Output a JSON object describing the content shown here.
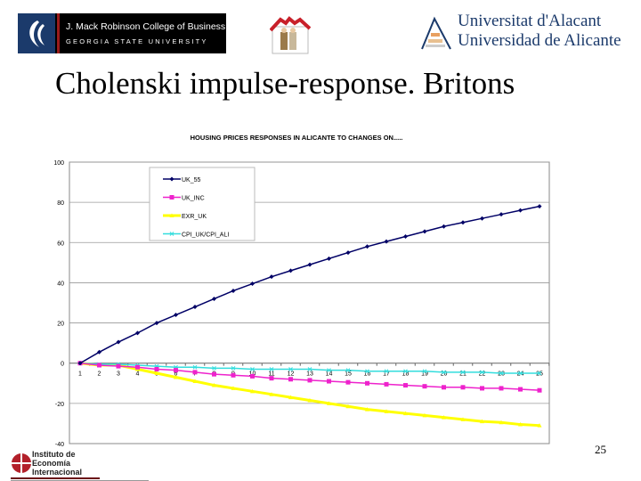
{
  "header": {
    "gsu_logo": {
      "line1": "J. Mack Robinson College of Business",
      "line2": "GEORGIA STATE UNIVERSITY"
    },
    "ua_logo": {
      "line1": "Universitat d'Alacant",
      "line2": "Universidad de Alicante"
    }
  },
  "slide_title": "Cholenski impulse-response. Britons",
  "footer": {
    "iei_logo": {
      "line1": "Instituto de",
      "line2": "Economía",
      "line3": "Internacional"
    },
    "page_number": "25"
  },
  "chart_data": {
    "type": "line",
    "title": "HOUSING PRICES RESPONSES IN ALICANTE TO CHANGES ON.....",
    "xlabel": "",
    "ylabel": "",
    "x": [
      1,
      2,
      3,
      4,
      5,
      6,
      7,
      8,
      9,
      10,
      11,
      12,
      13,
      14,
      15,
      16,
      17,
      18,
      19,
      20,
      21,
      22,
      23,
      24,
      25
    ],
    "ylim": [
      -40,
      100
    ],
    "yticks": [
      100,
      80,
      60,
      40,
      20,
      0,
      -20,
      -40
    ],
    "grid": true,
    "legend": "top-left",
    "series": [
      {
        "name": "UK_55",
        "color": "#000066",
        "marker": "diamond",
        "values": [
          0,
          5.5,
          10.5,
          15,
          20,
          24,
          28,
          32,
          36,
          39.5,
          43,
          46,
          49,
          52,
          55,
          58,
          60.5,
          63,
          65.5,
          68,
          70,
          72,
          74,
          76,
          78
        ]
      },
      {
        "name": "UK_INC",
        "color": "#ee22cc",
        "marker": "square",
        "values": [
          0,
          -1,
          -1.5,
          -2,
          -3,
          -3.5,
          -4.5,
          -5.5,
          -6,
          -6.5,
          -7.5,
          -8,
          -8.5,
          -9,
          -9.5,
          -10,
          -10.5,
          -11,
          -11.5,
          -12,
          -12,
          -12.5,
          -12.5,
          -13,
          -13.5
        ]
      },
      {
        "name": "EXR_UK",
        "color": "#ffff00",
        "marker": "triangle",
        "values": [
          0,
          -1,
          -1,
          -3,
          -5,
          -7,
          -9,
          -11,
          -12.5,
          -14,
          -15.5,
          -17,
          -18.5,
          -20,
          -21.5,
          -23,
          -24,
          -25,
          -26,
          -27,
          -28,
          -29,
          -29.5,
          -30.5,
          -31
        ]
      },
      {
        "name": "CPI_UK/CPI_ALI",
        "color": "#33dddd",
        "marker": "x",
        "values": [
          0,
          -0.5,
          -0.5,
          -1,
          -1.5,
          -2,
          -2,
          -2.5,
          -2.5,
          -3,
          -3,
          -3,
          -3,
          -3.5,
          -3.5,
          -4,
          -4,
          -4,
          -4,
          -4.5,
          -4.5,
          -4.5,
          -5,
          -5,
          -5
        ]
      }
    ]
  }
}
